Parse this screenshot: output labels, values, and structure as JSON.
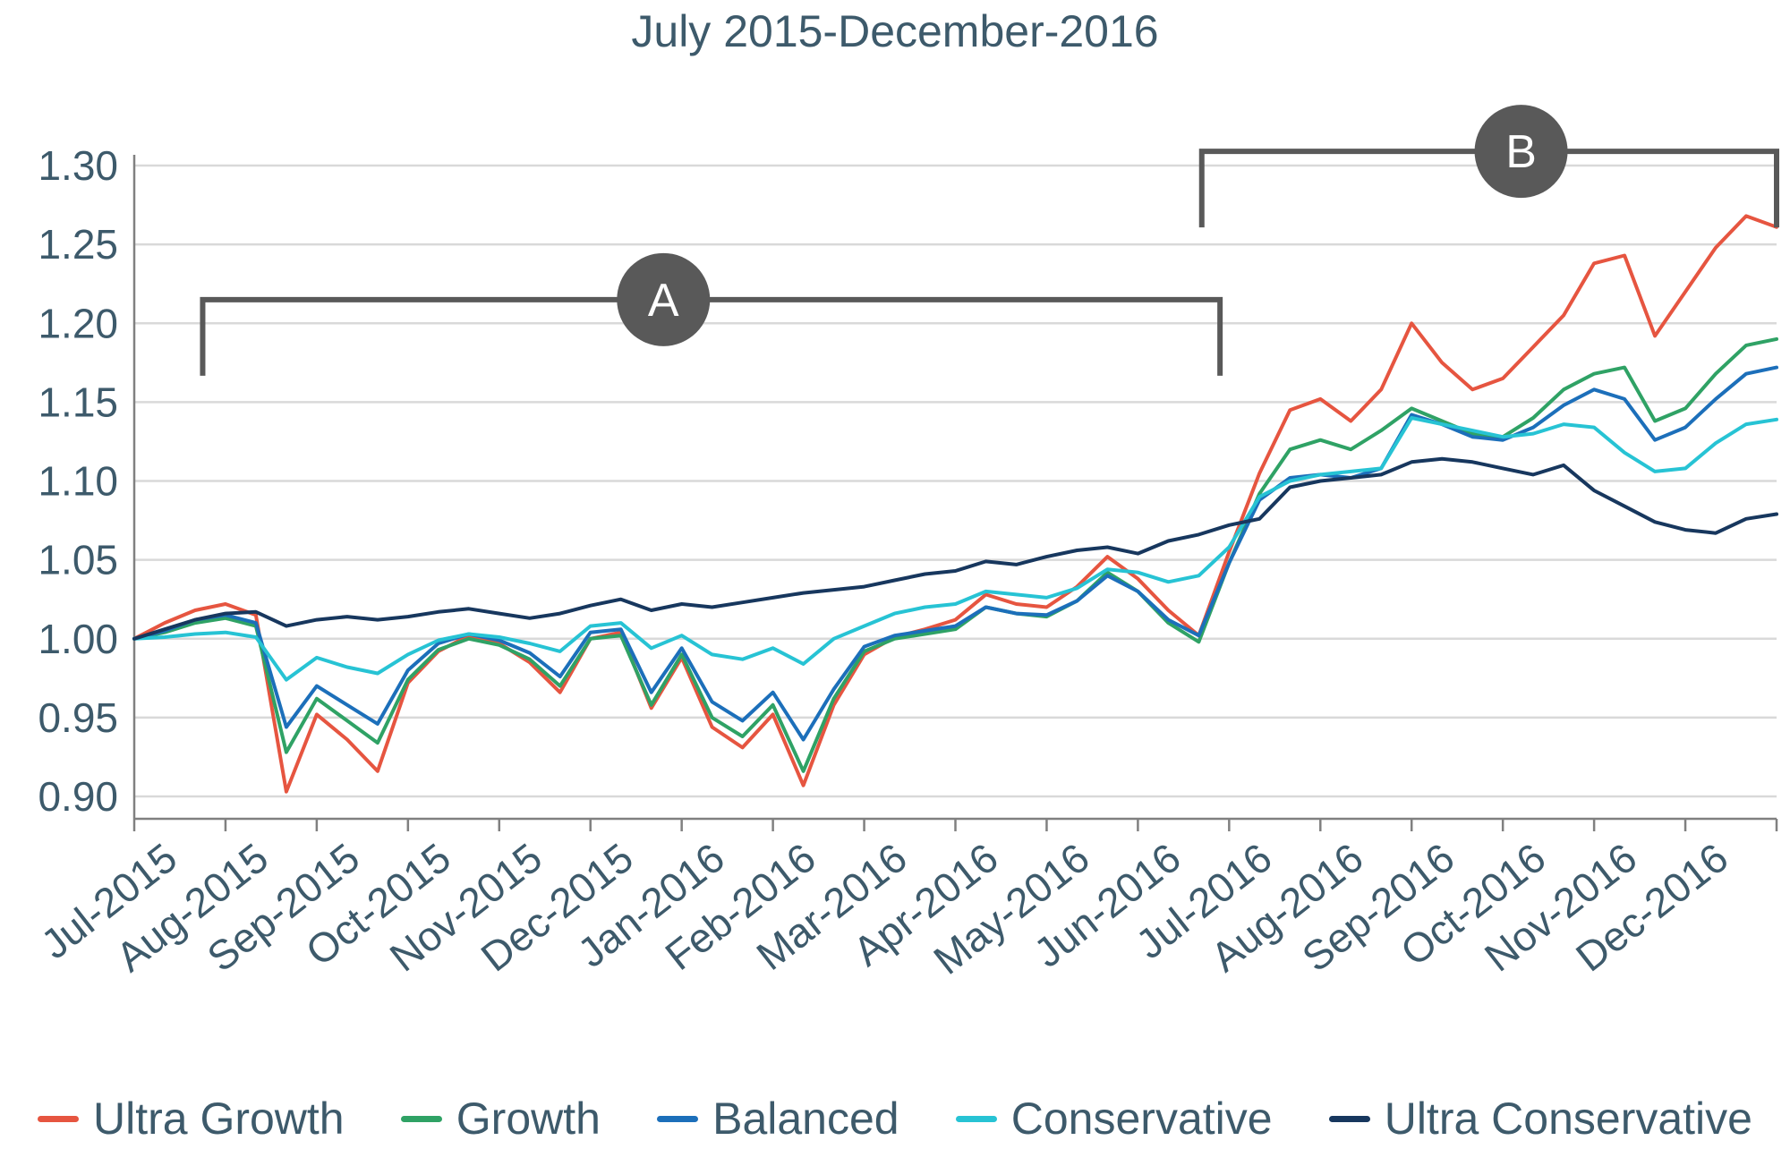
{
  "title": "July 2015-December-2016",
  "palette": {
    "background": "#ffffff",
    "grid": "#d9d9d9",
    "axis": "#808080",
    "text": "#3d5a6b",
    "bracket": "#595959",
    "bracket_label_text": "#ffffff"
  },
  "chart_data": {
    "type": "line",
    "title": "July 2015-December-2016",
    "x_labels": [
      "Jul-2015",
      "Aug-2015",
      "Sep-2015",
      "Oct-2015",
      "Nov-2015",
      "Dec-2015",
      "Jan-2016",
      "Feb-2016",
      "Mar-2016",
      "Apr-2016",
      "May-2016",
      "Jun-2016",
      "Jul-2016",
      "Aug-2016",
      "Sep-2016",
      "Oct-2016",
      "Nov-2016",
      "Dec-2016"
    ],
    "points_per_month": 3,
    "ylim": [
      0.9,
      1.3
    ],
    "y_tick_step": 0.05,
    "y_tick_labels": [
      "0.90",
      "0.95",
      "1.00",
      "1.05",
      "1.10",
      "1.15",
      "1.20",
      "1.25",
      "1.30"
    ],
    "grid": true,
    "legend_position": "bottom",
    "series": [
      {
        "name": "Ultra Growth",
        "color": "#e65540",
        "values": [
          1.0,
          1.01,
          1.018,
          1.022,
          1.015,
          0.903,
          0.952,
          0.936,
          0.916,
          0.972,
          0.992,
          1.002,
          0.997,
          0.985,
          0.966,
          1.0,
          1.004,
          0.956,
          0.988,
          0.944,
          0.931,
          0.952,
          0.907,
          0.958,
          0.99,
          1.001,
          1.006,
          1.012,
          1.028,
          1.022,
          1.02,
          1.033,
          1.052,
          1.038,
          1.018,
          1.002,
          1.055,
          1.105,
          1.145,
          1.152,
          1.138,
          1.158,
          1.2,
          1.175,
          1.158,
          1.165,
          1.185,
          1.205,
          1.238,
          1.243,
          1.192,
          1.22,
          1.248,
          1.268,
          1.261
        ]
      },
      {
        "name": "Growth",
        "color": "#2fa265",
        "values": [
          1.0,
          1.004,
          1.01,
          1.013,
          1.008,
          0.928,
          0.962,
          0.948,
          0.934,
          0.974,
          0.993,
          1.0,
          0.996,
          0.987,
          0.97,
          1.0,
          1.002,
          0.958,
          0.99,
          0.95,
          0.938,
          0.958,
          0.916,
          0.962,
          0.992,
          1.0,
          1.003,
          1.006,
          1.02,
          1.016,
          1.014,
          1.024,
          1.042,
          1.03,
          1.01,
          0.998,
          1.048,
          1.092,
          1.12,
          1.126,
          1.12,
          1.132,
          1.146,
          1.138,
          1.13,
          1.128,
          1.14,
          1.158,
          1.168,
          1.172,
          1.138,
          1.146,
          1.168,
          1.186,
          1.19
        ]
      },
      {
        "name": "Balanced",
        "color": "#1c6fba",
        "values": [
          1.0,
          1.005,
          1.012,
          1.015,
          1.01,
          0.944,
          0.97,
          0.958,
          0.946,
          0.98,
          0.997,
          1.003,
          0.999,
          0.991,
          0.976,
          1.004,
          1.006,
          0.966,
          0.994,
          0.96,
          0.948,
          0.966,
          0.936,
          0.968,
          0.995,
          1.002,
          1.005,
          1.008,
          1.02,
          1.016,
          1.015,
          1.024,
          1.04,
          1.03,
          1.012,
          1.002,
          1.048,
          1.088,
          1.102,
          1.104,
          1.102,
          1.108,
          1.142,
          1.136,
          1.128,
          1.126,
          1.134,
          1.148,
          1.158,
          1.152,
          1.126,
          1.134,
          1.152,
          1.168,
          1.172
        ]
      },
      {
        "name": "Conservative",
        "color": "#27c3d4",
        "values": [
          1.0,
          1.001,
          1.003,
          1.004,
          1.001,
          0.974,
          0.988,
          0.982,
          0.978,
          0.99,
          0.999,
          1.003,
          1.001,
          0.997,
          0.992,
          1.008,
          1.01,
          0.994,
          1.002,
          0.99,
          0.987,
          0.994,
          0.984,
          1.0,
          1.008,
          1.016,
          1.02,
          1.022,
          1.03,
          1.028,
          1.026,
          1.032,
          1.044,
          1.042,
          1.036,
          1.04,
          1.058,
          1.09,
          1.1,
          1.104,
          1.106,
          1.108,
          1.14,
          1.136,
          1.132,
          1.128,
          1.13,
          1.136,
          1.134,
          1.118,
          1.106,
          1.108,
          1.124,
          1.136,
          1.139
        ]
      },
      {
        "name": "Ultra Conservative",
        "color": "#17375e",
        "values": [
          1.0,
          1.006,
          1.012,
          1.016,
          1.017,
          1.008,
          1.012,
          1.014,
          1.012,
          1.014,
          1.017,
          1.019,
          1.016,
          1.013,
          1.016,
          1.021,
          1.025,
          1.018,
          1.022,
          1.02,
          1.023,
          1.026,
          1.029,
          1.031,
          1.033,
          1.037,
          1.041,
          1.043,
          1.049,
          1.047,
          1.052,
          1.056,
          1.058,
          1.054,
          1.062,
          1.066,
          1.072,
          1.076,
          1.096,
          1.1,
          1.102,
          1.104,
          1.112,
          1.114,
          1.112,
          1.108,
          1.104,
          1.11,
          1.094,
          1.084,
          1.074,
          1.069,
          1.067,
          1.076,
          1.079
        ]
      }
    ],
    "annotations": [
      {
        "label": "A",
        "x_start_month": 0.75,
        "x_end_month": 11.9,
        "circle_x_month": 5.8,
        "y_value": 1.215
      },
      {
        "label": "B",
        "x_start_month": 11.7,
        "x_end_month": 18.0,
        "circle_x_month": 15.2,
        "y_value": 1.309
      }
    ]
  }
}
